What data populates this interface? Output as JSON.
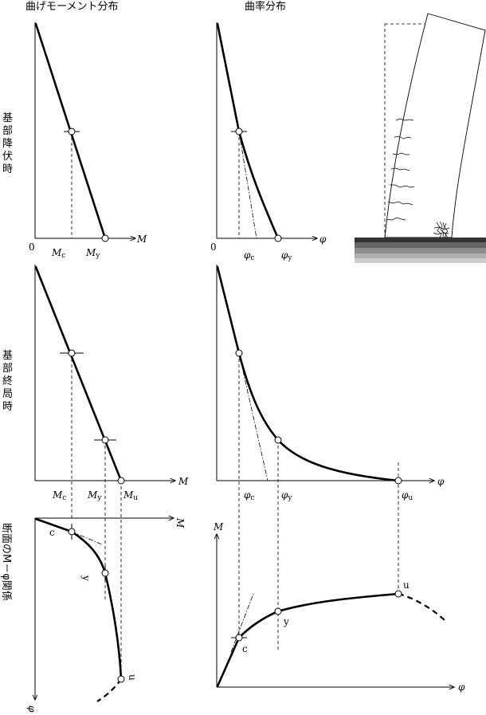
{
  "headers": {
    "moment": "曲げモーメント分布",
    "curvature": "曲率分布"
  },
  "row_labels": {
    "row1": [
      "基",
      "部",
      "降",
      "伏",
      "時"
    ],
    "row2": [
      "基",
      "部",
      "終",
      "局",
      "時"
    ],
    "row3": "断面のM－φ関係"
  },
  "labels": {
    "origin": "0",
    "M": "M",
    "phi": "φ",
    "c_main": "M",
    "c_sub": "c",
    "y_main": "M",
    "y_sub": "y",
    "u_main": "M",
    "u_sub": "u",
    "phi_main": "φ",
    "pt_c": "c",
    "pt_y": "y",
    "pt_u": "u"
  }
}
